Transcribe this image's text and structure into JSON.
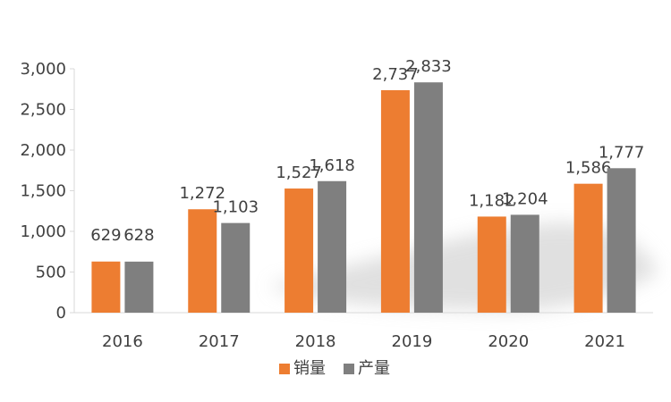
{
  "chart_data": {
    "type": "bar",
    "categories": [
      "2016",
      "2017",
      "2018",
      "2019",
      "2020",
      "2021"
    ],
    "series": [
      {
        "name": "销量",
        "values": [
          629,
          1272,
          1527,
          2737,
          1182,
          1586
        ],
        "color": "#ED7D31"
      },
      {
        "name": "产量",
        "values": [
          628,
          1103,
          1618,
          2833,
          1204,
          1777
        ],
        "color": "#7F7F7F"
      }
    ],
    "data_labels": {
      "销量": [
        "629",
        "1,272",
        "1,527",
        "2,737",
        "1,182",
        "1,586"
      ],
      "产量": [
        "628",
        "1,103",
        "1,618",
        "2,833",
        "1,204",
        "1,777"
      ]
    },
    "title": "",
    "xlabel": "",
    "ylabel": "",
    "ylim": [
      0,
      3000
    ],
    "y_ticks": [
      0,
      500,
      1000,
      1500,
      2000,
      2500,
      3000
    ],
    "y_tick_labels": [
      "0",
      "500",
      "1,000",
      "1,500",
      "2,000",
      "2,500",
      "3,000"
    ],
    "grid": false,
    "legend_position": "bottom",
    "axis_color": "#D9D9D9",
    "text_color": "#404040"
  }
}
